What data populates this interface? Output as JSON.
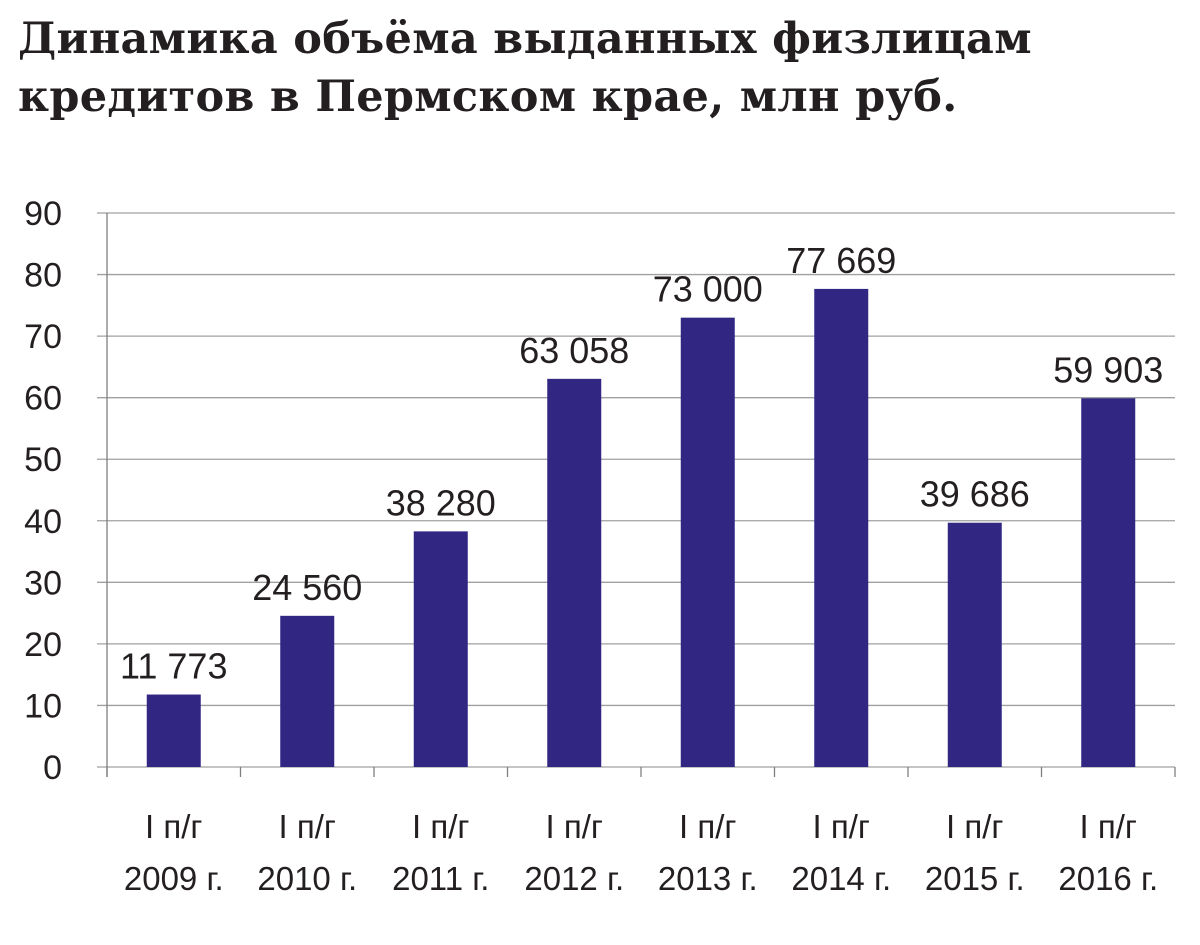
{
  "chart_data": {
    "type": "bar",
    "title_lines": [
      "Динамика объёма выданных физлицам",
      "кредитов в Пермском крае, млн руб."
    ],
    "categories": [
      [
        "I п/г",
        "2009 г."
      ],
      [
        "I п/г",
        "2010 г."
      ],
      [
        "I п/г",
        "2011 г."
      ],
      [
        "I п/г",
        "2012 г."
      ],
      [
        "I п/г",
        "2013 г."
      ],
      [
        "I п/г",
        "2014 г."
      ],
      [
        "I п/г",
        "2015 г."
      ],
      [
        "I п/г",
        "2016 г."
      ]
    ],
    "values": [
      11.773,
      24.56,
      38.28,
      63.058,
      73.0,
      77.669,
      39.686,
      59.903
    ],
    "data_labels": [
      "11 773",
      "24 560",
      "38 280",
      "63 058",
      "73 000",
      "77 669",
      "39 686",
      "59 903"
    ],
    "ylim": [
      0,
      90
    ],
    "yticks": [
      "0",
      "10",
      "20",
      "30",
      "40",
      "50",
      "60",
      "70",
      "80",
      "90"
    ],
    "xlabel": "",
    "ylabel": "",
    "grid": true,
    "legend": "none",
    "bar_color": "#312783",
    "grid_color": "#a0a0a0",
    "text_color": "#231f20"
  }
}
